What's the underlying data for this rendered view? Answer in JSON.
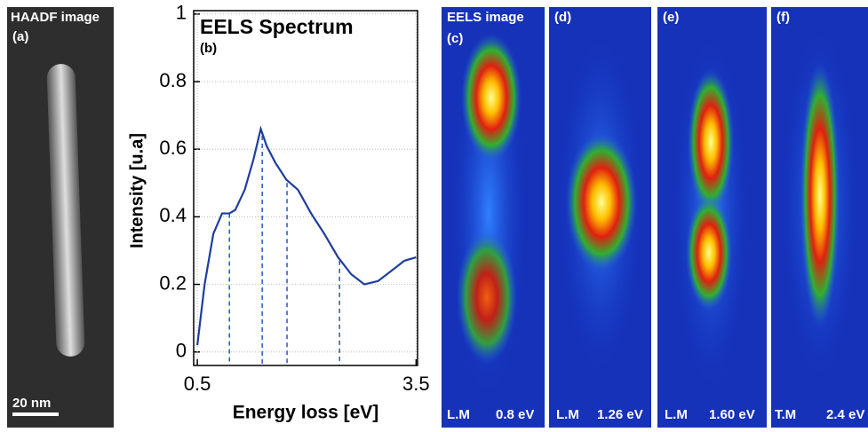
{
  "panels": {
    "a": {
      "title": "HAADF image",
      "label": "(a)",
      "scale_bar": "20 nm"
    },
    "c": {
      "title": "EELS image",
      "label": "(c)",
      "mode": "L.M",
      "energy": "0.8 eV"
    },
    "d": {
      "label": "(d)",
      "mode": "L.M",
      "energy": "1.26 eV"
    },
    "e": {
      "label": "(e)",
      "mode": "L.M",
      "energy": "1.60 eV"
    },
    "f": {
      "label": "(f)",
      "mode": "T.M",
      "energy": "2.4 eV"
    }
  },
  "chart_data": {
    "type": "line",
    "title": "EELS Spectrum",
    "subtitle": "(b)",
    "x_label": "Energy loss [eV]",
    "y_label": "Intensity [u.a]",
    "x": [
      0.5,
      0.6,
      0.72,
      0.84,
      0.94,
      1.02,
      1.15,
      1.27,
      1.37,
      1.45,
      1.57,
      1.72,
      1.88,
      2.06,
      2.24,
      2.43,
      2.61,
      2.79,
      2.98,
      3.16,
      3.34,
      3.5
    ],
    "series": [
      {
        "color": "#1f3d9c",
        "values": [
          0.02,
          0.2,
          0.35,
          0.41,
          0.41,
          0.42,
          0.48,
          0.57,
          0.66,
          0.61,
          0.56,
          0.51,
          0.48,
          0.41,
          0.35,
          0.28,
          0.23,
          0.2,
          0.21,
          0.24,
          0.27,
          0.28
        ]
      }
    ],
    "reference_lines": {
      "color": "#2a55c8",
      "x": [
        0.94,
        1.39,
        1.73,
        2.45
      ],
      "values": [
        0.41,
        0.64,
        0.5,
        0.27
      ]
    },
    "xlim": [
      0.45,
      3.52
    ],
    "xticks": [
      0.5,
      3.5
    ],
    "ylim": [
      -0.04,
      1.01
    ],
    "yticks": [
      0.0,
      0.2,
      0.4,
      0.6,
      0.8,
      1.0
    ],
    "grid": true
  }
}
